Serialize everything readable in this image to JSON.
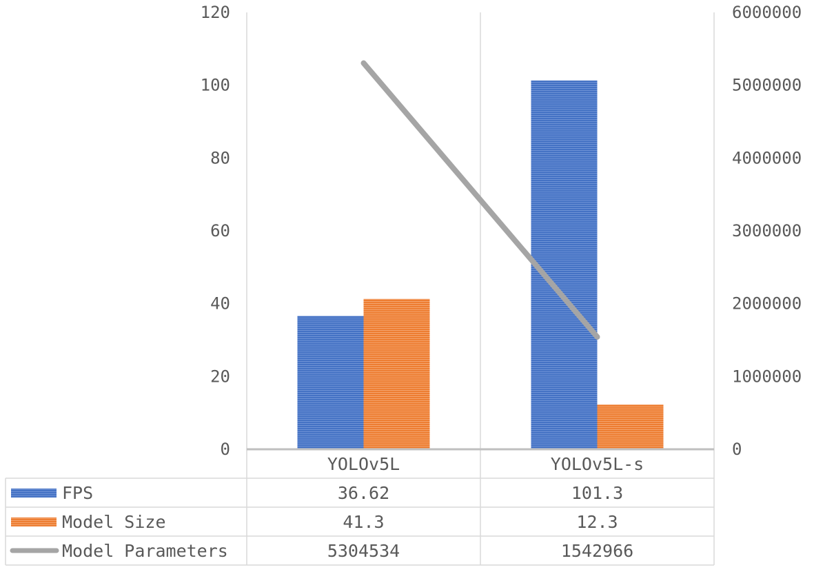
{
  "chart_data": {
    "type": "bar",
    "categories": [
      "YOLOv5L",
      "YOLOv5L-s"
    ],
    "series": [
      {
        "name": "FPS",
        "type": "bar",
        "axis": "left",
        "values": [
          36.62,
          101.3
        ],
        "display": [
          "36.62",
          "101.3"
        ],
        "color": "#4472c4"
      },
      {
        "name": "Model Size",
        "type": "bar",
        "axis": "left",
        "values": [
          41.3,
          12.3
        ],
        "display": [
          "41.3",
          "12.3"
        ],
        "color": "#ed7d31"
      },
      {
        "name": "Model Parameters",
        "type": "line",
        "axis": "right",
        "values": [
          5304534,
          1542966
        ],
        "display": [
          "5304534",
          "1542966"
        ],
        "color": "#a5a5a5"
      }
    ],
    "y_left": {
      "min": 0,
      "max": 120,
      "ticks": [
        "0",
        "20",
        "40",
        "60",
        "80",
        "100",
        "120"
      ]
    },
    "y_right": {
      "min": 0,
      "max": 6000000,
      "ticks": [
        "0",
        "1000000",
        "2000000",
        "3000000",
        "4000000",
        "5000000",
        "6000000"
      ]
    },
    "grid": "vertical category separators",
    "legend": "data table below chart"
  }
}
